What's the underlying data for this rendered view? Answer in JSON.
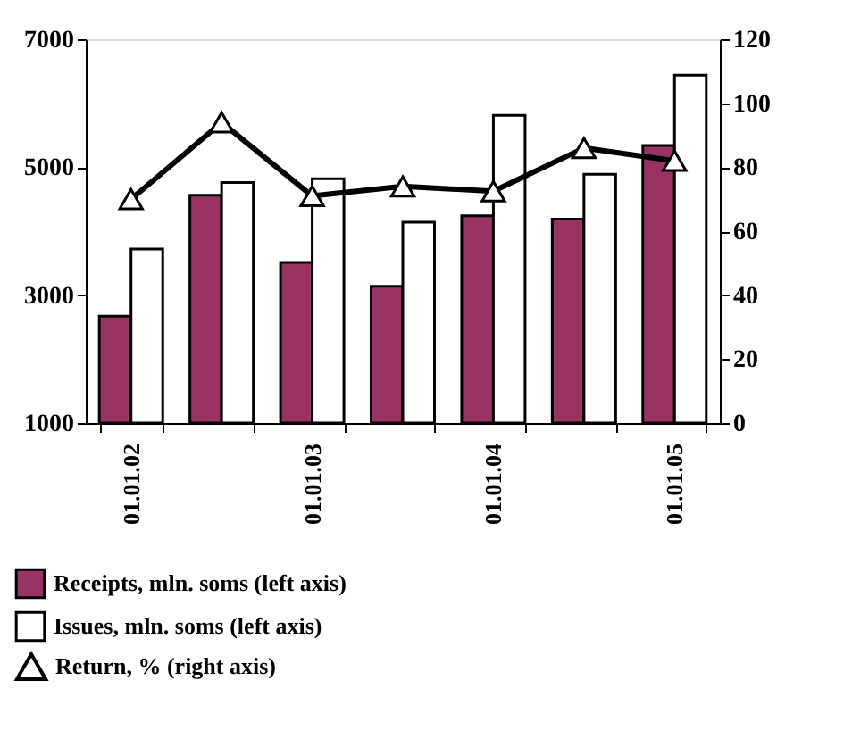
{
  "chart_data": {
    "type": "bar",
    "categories": [
      "01.01.02",
      null,
      "01.01.03",
      null,
      "01.01.04",
      null,
      "01.01.05"
    ],
    "series": [
      {
        "name": "Receipts, mln. soms (left axis)",
        "color": "#993366",
        "values": [
          2670,
          4560,
          3510,
          3140,
          4240,
          4190,
          5340
        ]
      },
      {
        "name": "Issues, mln. soms (left axis)",
        "color": "#ffffff",
        "values": [
          3720,
          4760,
          4820,
          4140,
          5810,
          4890,
          6440
        ]
      },
      {
        "name": "Return, % (right axis)",
        "type": "line",
        "axis": "y2",
        "color": "#000000",
        "marker": "triangle",
        "values": [
          70,
          94,
          71,
          74,
          72.5,
          86,
          82
        ]
      }
    ],
    "ylim": [
      1000,
      7000
    ],
    "yticks": [
      1000,
      3000,
      5000,
      7000
    ],
    "y2lim": [
      0,
      120
    ],
    "y2ticks": [
      0,
      20,
      40,
      60,
      80,
      100,
      120
    ],
    "grid": false,
    "legend": "bottom"
  }
}
